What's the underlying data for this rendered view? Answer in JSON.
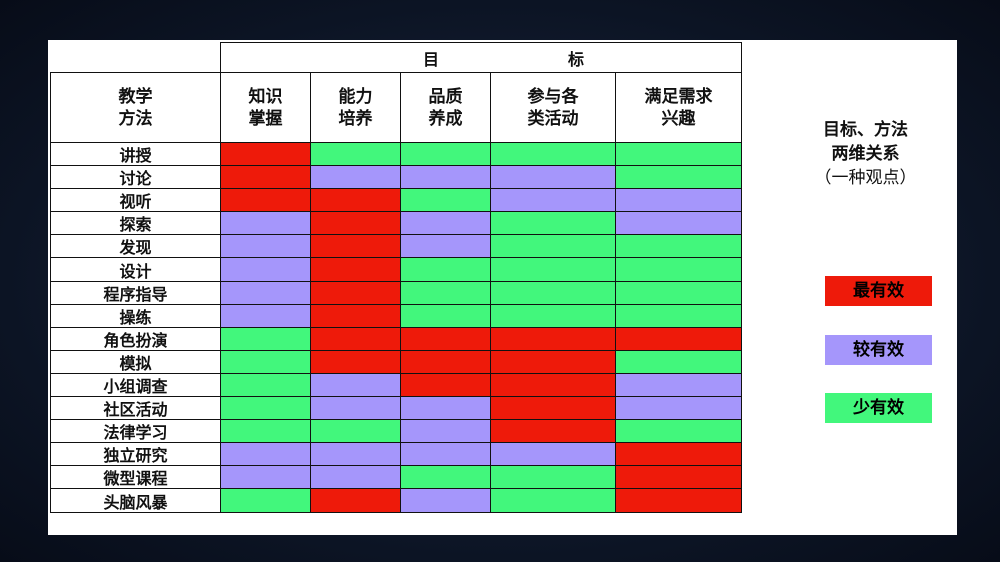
{
  "colors": {
    "R": "#ee1a0a",
    "P": "#a596fb",
    "G": "#42f77c"
  },
  "header": {
    "goal_a": "目",
    "goal_b": "标",
    "method": "教学\n方法",
    "goals": [
      "知识\n掌握",
      "能力\n培养",
      "品质\n养成",
      "参与各\n类活动",
      "满足需求\n兴趣"
    ]
  },
  "rows": [
    {
      "method": "讲授",
      "cells": [
        "R",
        "G",
        "G",
        "G",
        "G"
      ]
    },
    {
      "method": "讨论",
      "cells": [
        "R",
        "P",
        "P",
        "P",
        "G"
      ]
    },
    {
      "method": "视听",
      "cells": [
        "R",
        "R",
        "G",
        "P",
        "P"
      ]
    },
    {
      "method": "探索",
      "cells": [
        "P",
        "R",
        "P",
        "G",
        "P"
      ]
    },
    {
      "method": "发现",
      "cells": [
        "P",
        "R",
        "P",
        "G",
        "G"
      ]
    },
    {
      "method": "设计",
      "cells": [
        "P",
        "R",
        "G",
        "G",
        "G"
      ]
    },
    {
      "method": "程序指导",
      "cells": [
        "P",
        "R",
        "G",
        "G",
        "G"
      ]
    },
    {
      "method": "操练",
      "cells": [
        "P",
        "R",
        "G",
        "G",
        "G"
      ]
    },
    {
      "method": "角色扮演",
      "cells": [
        "G",
        "R",
        "R",
        "R",
        "R"
      ]
    },
    {
      "method": "模拟",
      "cells": [
        "G",
        "R",
        "R",
        "R",
        "G"
      ]
    },
    {
      "method": "小组调查",
      "cells": [
        "G",
        "P",
        "R",
        "R",
        "P"
      ]
    },
    {
      "method": "社区活动",
      "cells": [
        "G",
        "P",
        "P",
        "R",
        "P"
      ]
    },
    {
      "method": "法律学习",
      "cells": [
        "G",
        "G",
        "P",
        "R",
        "G"
      ]
    },
    {
      "method": "独立研究",
      "cells": [
        "P",
        "P",
        "P",
        "P",
        "R"
      ]
    },
    {
      "method": "微型课程",
      "cells": [
        "P",
        "P",
        "G",
        "G",
        "R"
      ]
    },
    {
      "method": "头脑风暴",
      "cells": [
        "G",
        "R",
        "P",
        "G",
        "R"
      ]
    }
  ],
  "side": {
    "line1": "目标、方法",
    "line2": "两维关系",
    "line3": "（一种观点）"
  },
  "legend": [
    {
      "key": "R",
      "label": "最有效"
    },
    {
      "key": "P",
      "label": "较有效"
    },
    {
      "key": "G",
      "label": "少有效"
    }
  ]
}
